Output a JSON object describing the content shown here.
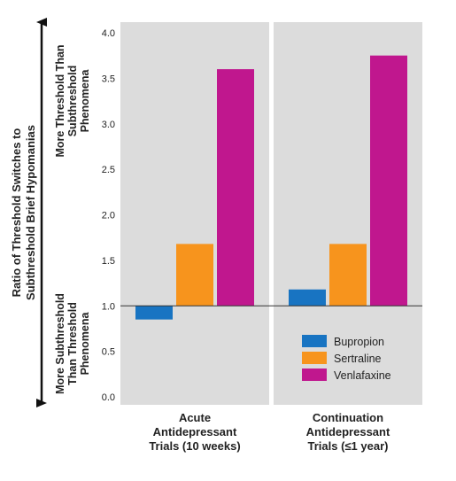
{
  "chart_data": {
    "type": "bar",
    "ylabel_lines": [
      "Ratio of Threshold Switches to",
      "Subthreshold Brief Hypomanias"
    ],
    "direction_labels": {
      "up": [
        "More Threshold Than",
        "Subthreshold",
        "Phenomena"
      ],
      "down": [
        "More Subthreshold",
        "Than Threshold",
        "Phenomena"
      ]
    },
    "ylim": [
      0.0,
      4.0
    ],
    "yticks": [
      "0.0",
      "0.5",
      "1.0",
      "1.5",
      "2.0",
      "2.5",
      "3.0",
      "3.5",
      "4.0"
    ],
    "baseline": 1.0,
    "grid": false,
    "legend_position": "bottom-right",
    "categories": [
      [
        "Acute",
        "Antidepressant",
        "Trials (10 weeks)"
      ],
      [
        "Continuation",
        "Antidepressant",
        "Trials (≤1 year)"
      ]
    ],
    "series": [
      {
        "name": "Bupropion",
        "color": "#1874c2",
        "values": [
          0.85,
          1.18
        ]
      },
      {
        "name": "Sertraline",
        "color": "#f7941d",
        "values": [
          1.68,
          1.68
        ]
      },
      {
        "name": "Venlafaxine",
        "color": "#c0178e",
        "values": [
          3.6,
          3.75
        ]
      }
    ],
    "panel_color": "#dcdcdc"
  }
}
